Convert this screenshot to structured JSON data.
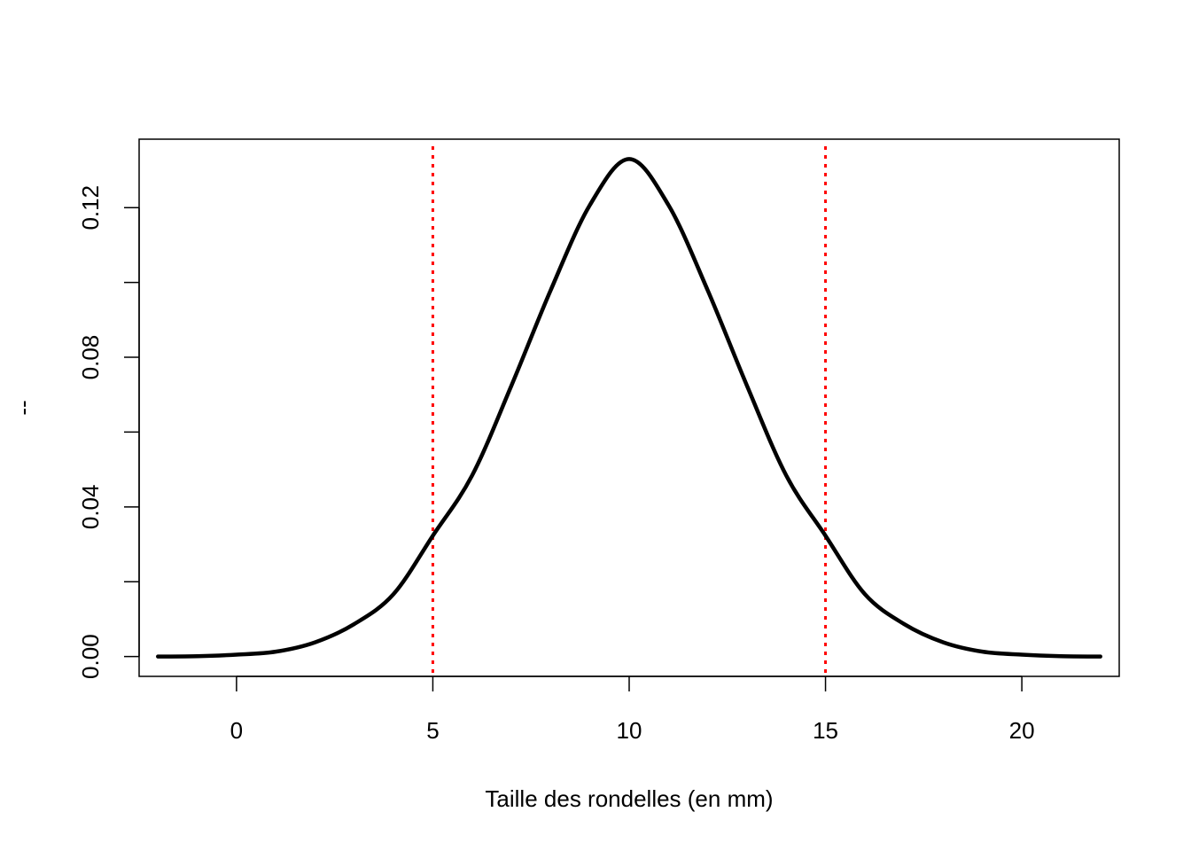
{
  "chart_data": {
    "type": "line",
    "title": "",
    "xlabel": "Taille des rondelles (en mm)",
    "ylabel": "--",
    "xlim": [
      -2.48,
      22.48
    ],
    "ylim": [
      -0.0053,
      0.1383
    ],
    "x_ticks": [
      0,
      5,
      10,
      15,
      20
    ],
    "x_tick_labels": [
      "0",
      "5",
      "10",
      "15",
      "20"
    ],
    "y_ticks": [
      0.0,
      0.02,
      0.04,
      0.06,
      0.08,
      0.1,
      0.12
    ],
    "y_tick_labels": [
      "0.00",
      "",
      "0.04",
      "",
      "0.08",
      "",
      "0.12"
    ],
    "grid": false,
    "series": [
      {
        "type": "line",
        "color": "#000000",
        "x": [
          -2,
          -1,
          0,
          1,
          2,
          3,
          4,
          5,
          6,
          7,
          8,
          9,
          10,
          11,
          12,
          13,
          14,
          15,
          16,
          17,
          18,
          19,
          20,
          21,
          22
        ],
        "y": [
          0.0,
          0.0001,
          0.0005,
          0.0013,
          0.0038,
          0.0087,
          0.0167,
          0.0323,
          0.0484,
          0.0724,
          0.0979,
          0.1207,
          0.133,
          0.1207,
          0.0979,
          0.0724,
          0.0484,
          0.0323,
          0.0167,
          0.0087,
          0.0038,
          0.0013,
          0.0005,
          0.0001,
          0.0
        ]
      }
    ],
    "vlines": [
      {
        "x": 5,
        "color": "#ff0000",
        "style": "dotted"
      },
      {
        "x": 15,
        "color": "#ff0000",
        "style": "dotted"
      }
    ]
  }
}
